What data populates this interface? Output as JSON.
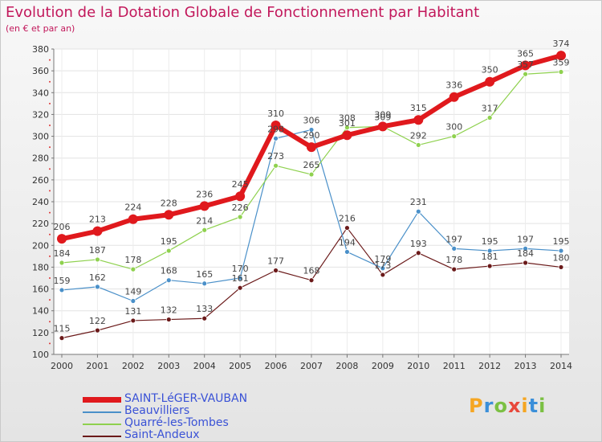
{
  "title": "Evolution de la Dotation Globale de Fonctionnement par Habitant",
  "subtitle": "(en € et par an)",
  "chart_data": {
    "type": "line",
    "title": "Evolution de la Dotation Globale de Fonctionnement par Habitant",
    "subtitle": "(en € et par an)",
    "x": [
      "2000",
      "2001",
      "2002",
      "2003",
      "2004",
      "2005",
      "2006",
      "2007",
      "2008",
      "2009",
      "2010",
      "2011",
      "2012",
      "2013",
      "2014"
    ],
    "ylim": [
      100,
      380
    ],
    "yticks": [
      100,
      120,
      140,
      160,
      180,
      200,
      220,
      240,
      260,
      280,
      300,
      320,
      340,
      360,
      380
    ],
    "grid": true,
    "legend_position": "bottom-left",
    "series": [
      {
        "name": "SAINT-LéGER-VAUBAN",
        "color": "#e0191d",
        "values": [
          206,
          213,
          224,
          228,
          236,
          245,
          310,
          290,
          301,
          309,
          315,
          336,
          350,
          365,
          374
        ]
      },
      {
        "name": "Beauvilliers",
        "color": "#4a90c9",
        "values": [
          159,
          162,
          149,
          168,
          165,
          170,
          298,
          306,
          194,
          179,
          231,
          197,
          195,
          197,
          195
        ]
      },
      {
        "name": "Quarré-les-Tombes",
        "color": "#8fd14f",
        "values": [
          184,
          187,
          178,
          195,
          214,
          226,
          273,
          265,
          308,
          309,
          292,
          300,
          317,
          357,
          359
        ]
      },
      {
        "name": "Saint-Andeux",
        "color": "#6b1a1a",
        "values": [
          115,
          122,
          131,
          132,
          133,
          161,
          177,
          168,
          216,
          173,
          193,
          178,
          181,
          184,
          180
        ]
      }
    ]
  },
  "logo": {
    "letters": [
      "P",
      "r",
      "o",
      "x",
      "i",
      "t",
      "i"
    ],
    "colors": [
      "#f5a623",
      "#3b8fd9",
      "#7bc043",
      "#e8483b",
      "#f5a623",
      "#3b8fd9",
      "#7bc043"
    ]
  }
}
